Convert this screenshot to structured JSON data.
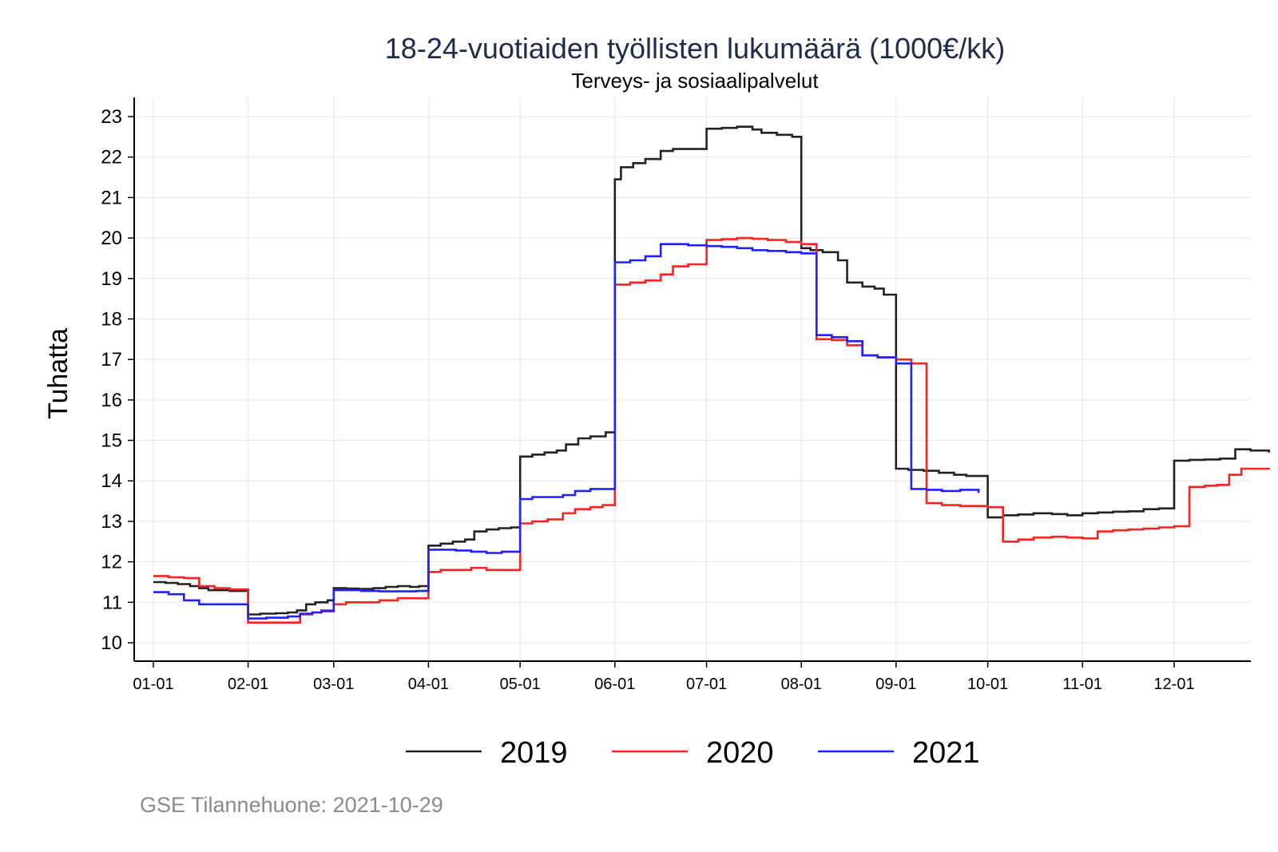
{
  "chart_data": {
    "type": "line",
    "title": "18-24-vuotiaiden työllisten lukumäärä (1000€/kk)",
    "subtitle": "Terveys- ja sosiaalipalvelut",
    "xlabel": "",
    "ylabel": "Tuhatta",
    "caption": "GSE Tilannehuone: 2021-10-29",
    "xlim": [
      0,
      365
    ],
    "ylim": [
      9.5,
      23.3
    ],
    "x_ticks": [
      {
        "label": "01-01",
        "day": 0
      },
      {
        "label": "02-01",
        "day": 31
      },
      {
        "label": "03-01",
        "day": 59
      },
      {
        "label": "04-01",
        "day": 90
      },
      {
        "label": "05-01",
        "day": 120
      },
      {
        "label": "06-01",
        "day": 151
      },
      {
        "label": "07-01",
        "day": 181
      },
      {
        "label": "08-01",
        "day": 212
      },
      {
        "label": "09-01",
        "day": 243
      },
      {
        "label": "10-01",
        "day": 273
      },
      {
        "label": "11-01",
        "day": 304
      },
      {
        "label": "12-01",
        "day": 334
      }
    ],
    "y_ticks": [
      10,
      11,
      12,
      13,
      14,
      15,
      16,
      17,
      18,
      19,
      20,
      21,
      22,
      23
    ],
    "grid": true,
    "legend_position": "bottom",
    "series": [
      {
        "name": "2019",
        "color": "#222222",
        "x": [
          0,
          4,
          8,
          12,
          15,
          18,
          21,
          25,
          31,
          35,
          40,
          44,
          47,
          50,
          53,
          57,
          59,
          63,
          67,
          72,
          76,
          80,
          84,
          87,
          90,
          94,
          98,
          102,
          105,
          109,
          113,
          117,
          120,
          124,
          128,
          132,
          135,
          139,
          143,
          148,
          151,
          153,
          157,
          161,
          166,
          170,
          176,
          181,
          186,
          191,
          196,
          199,
          204,
          209,
          212,
          215,
          219,
          224,
          227,
          232,
          236,
          239,
          243,
          247,
          252,
          257,
          262,
          266,
          273,
          278,
          283,
          288,
          294,
          299,
          304,
          309,
          314,
          319,
          324,
          329,
          334,
          339,
          344,
          349,
          354,
          359,
          365
        ],
        "values": [
          11.5,
          11.48,
          11.45,
          11.4,
          11.35,
          11.3,
          11.3,
          11.28,
          10.7,
          10.72,
          10.73,
          10.75,
          10.8,
          10.95,
          11.0,
          11.05,
          11.35,
          11.34,
          11.33,
          11.35,
          11.38,
          11.4,
          11.38,
          11.4,
          12.4,
          12.45,
          12.5,
          12.55,
          12.75,
          12.8,
          12.83,
          12.85,
          14.6,
          14.65,
          14.7,
          14.75,
          14.9,
          15.05,
          15.1,
          15.2,
          21.45,
          21.75,
          21.85,
          21.95,
          22.15,
          22.2,
          22.2,
          22.7,
          22.72,
          22.75,
          22.68,
          22.6,
          22.55,
          22.5,
          19.75,
          19.7,
          19.65,
          19.45,
          18.9,
          18.8,
          18.75,
          18.6,
          14.3,
          14.27,
          14.25,
          14.2,
          14.15,
          14.12,
          13.1,
          13.15,
          13.17,
          13.2,
          13.18,
          13.15,
          13.2,
          13.22,
          13.24,
          13.25,
          13.3,
          13.32,
          14.5,
          14.52,
          14.53,
          14.55,
          14.78,
          14.75,
          14.7
        ]
      },
      {
        "name": "2020",
        "color": "#ff2020",
        "x": [
          0,
          5,
          10,
          15,
          20,
          25,
          31,
          37,
          44,
          48,
          52,
          55,
          59,
          63,
          68,
          74,
          80,
          86,
          90,
          94,
          99,
          104,
          109,
          114,
          120,
          124,
          129,
          134,
          138,
          143,
          147,
          151,
          156,
          161,
          166,
          170,
          175,
          181,
          186,
          191,
          196,
          201,
          207,
          212,
          217,
          222,
          227,
          232,
          237,
          243,
          248,
          253,
          258,
          264,
          273,
          278,
          283,
          288,
          294,
          299,
          304,
          309,
          314,
          319,
          324,
          329,
          334,
          339,
          344,
          348,
          352,
          356,
          365
        ],
        "values": [
          11.65,
          11.62,
          11.6,
          11.4,
          11.35,
          11.32,
          10.5,
          10.5,
          10.5,
          10.7,
          10.75,
          10.8,
          10.95,
          11.0,
          11.0,
          11.05,
          11.1,
          11.1,
          11.75,
          11.8,
          11.8,
          11.85,
          11.8,
          11.8,
          12.95,
          13.0,
          13.05,
          13.2,
          13.3,
          13.35,
          13.4,
          18.85,
          18.9,
          18.95,
          19.1,
          19.3,
          19.35,
          19.95,
          19.97,
          20.0,
          19.98,
          19.95,
          19.9,
          19.85,
          17.5,
          17.48,
          17.35,
          17.1,
          17.05,
          17.0,
          16.9,
          13.45,
          13.4,
          13.38,
          13.35,
          12.5,
          12.55,
          12.6,
          12.62,
          12.6,
          12.58,
          12.75,
          12.78,
          12.8,
          12.82,
          12.85,
          12.88,
          13.85,
          13.88,
          13.9,
          14.15,
          14.3,
          14.28
        ]
      },
      {
        "name": "2021",
        "color": "#2020ff",
        "x": [
          0,
          5,
          10,
          15,
          20,
          25,
          31,
          37,
          44,
          48,
          52,
          55,
          59,
          63,
          68,
          74,
          80,
          86,
          90,
          94,
          99,
          104,
          109,
          114,
          120,
          124,
          129,
          134,
          138,
          143,
          147,
          151,
          156,
          161,
          166,
          170,
          175,
          181,
          186,
          191,
          196,
          201,
          207,
          212,
          217,
          222,
          227,
          232,
          237,
          243,
          248,
          253,
          258,
          264,
          270
        ],
        "values": [
          11.25,
          11.2,
          11.05,
          10.95,
          10.95,
          10.95,
          10.6,
          10.62,
          10.65,
          10.72,
          10.75,
          10.78,
          11.3,
          11.3,
          11.28,
          11.27,
          11.27,
          11.28,
          12.3,
          12.3,
          12.28,
          12.25,
          12.22,
          12.25,
          13.55,
          13.6,
          13.6,
          13.65,
          13.75,
          13.8,
          13.8,
          19.4,
          19.45,
          19.55,
          19.85,
          19.85,
          19.82,
          19.8,
          19.78,
          19.75,
          19.7,
          19.68,
          19.65,
          19.62,
          17.6,
          17.55,
          17.45,
          17.1,
          17.05,
          16.9,
          13.8,
          13.78,
          13.75,
          13.78,
          13.7
        ]
      }
    ]
  }
}
